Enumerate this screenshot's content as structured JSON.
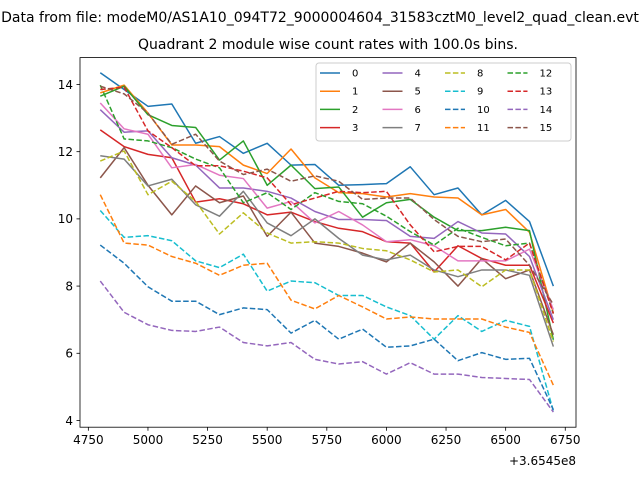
{
  "chart_data": {
    "type": "line",
    "suptitle": "Data from file: modeM0/AS1A10_094T72_9000004604_31583cztM0_level2_quad_clean.evt",
    "title": "Quadrant 2 module wise count rates with 100.0s bins.",
    "xlabel": "",
    "ylabel": "",
    "x_offset_label": "+3.6545e8",
    "xlim": [
      4715,
      6795
    ],
    "ylim": [
      3.8,
      14.8
    ],
    "xticks": [
      4750,
      5000,
      5250,
      5500,
      5750,
      6000,
      6250,
      6500,
      6750
    ],
    "yticks": [
      4,
      6,
      8,
      10,
      12,
      14
    ],
    "legend_position": "top-right",
    "legend_columns": 4,
    "x": [
      4800,
      4900,
      5000,
      5100,
      5200,
      5300,
      5400,
      5500,
      5600,
      5700,
      5800,
      5900,
      6000,
      6100,
      6200,
      6300,
      6400,
      6500,
      6600,
      6700
    ],
    "series": [
      {
        "name": "0",
        "color": "#1f77b4",
        "dash": "solid",
        "values": [
          14.35,
          13.85,
          13.35,
          13.42,
          12.25,
          12.45,
          11.95,
          12.25,
          11.6,
          11.62,
          11.0,
          11.02,
          11.05,
          11.55,
          10.72,
          10.92,
          10.12,
          10.55,
          9.92,
          8.0
        ]
      },
      {
        "name": "1",
        "color": "#ff7f0e",
        "dash": "solid",
        "values": [
          13.75,
          13.98,
          13.15,
          12.2,
          12.2,
          12.15,
          11.6,
          11.35,
          12.08,
          11.22,
          10.78,
          10.75,
          10.65,
          10.75,
          10.65,
          10.62,
          10.12,
          10.28,
          9.6,
          7.2
        ]
      },
      {
        "name": "2",
        "color": "#2ca02c",
        "dash": "solid",
        "values": [
          13.65,
          13.95,
          13.1,
          12.78,
          12.72,
          11.75,
          12.32,
          11.0,
          11.6,
          10.9,
          10.95,
          10.05,
          10.48,
          10.58,
          10.05,
          9.65,
          9.65,
          9.75,
          9.65,
          6.4
        ]
      },
      {
        "name": "3",
        "color": "#d62728",
        "dash": "solid",
        "values": [
          12.65,
          12.15,
          11.92,
          11.82,
          10.5,
          10.6,
          10.45,
          10.12,
          10.2,
          9.92,
          9.72,
          9.62,
          9.32,
          9.28,
          8.42,
          9.2,
          8.82,
          8.62,
          8.62,
          6.9
        ]
      },
      {
        "name": "4",
        "color": "#9467bd",
        "dash": "solid",
        "values": [
          13.25,
          12.58,
          12.62,
          11.82,
          11.6,
          10.92,
          10.92,
          10.82,
          10.62,
          10.22,
          9.98,
          9.98,
          9.95,
          9.48,
          9.42,
          9.92,
          9.58,
          9.55,
          8.88,
          7.0
        ]
      },
      {
        "name": "5",
        "color": "#8c564b",
        "dash": "solid",
        "values": [
          11.22,
          12.12,
          11.0,
          10.12,
          10.98,
          10.48,
          10.68,
          9.48,
          10.2,
          9.28,
          9.18,
          8.98,
          8.72,
          9.28,
          8.72,
          8.0,
          8.82,
          8.22,
          8.48,
          6.55
        ]
      },
      {
        "name": "6",
        "color": "#e377c2",
        "dash": "solid",
        "values": [
          13.45,
          12.68,
          12.52,
          11.52,
          11.62,
          11.3,
          11.2,
          10.32,
          10.52,
          9.88,
          10.22,
          9.82,
          9.32,
          9.38,
          9.2,
          8.75,
          8.75,
          8.75,
          9.1,
          7.3
        ]
      },
      {
        "name": "7",
        "color": "#7f7f7f",
        "dash": "solid",
        "values": [
          11.88,
          11.78,
          10.98,
          11.18,
          10.42,
          10.08,
          10.82,
          9.88,
          9.5,
          10.0,
          9.42,
          8.92,
          8.78,
          8.92,
          8.48,
          8.28,
          8.48,
          8.48,
          8.32,
          6.2
        ]
      },
      {
        "name": "8",
        "color": "#bcbd22",
        "dash": "dashed",
        "values": [
          11.72,
          12.02,
          10.72,
          11.12,
          10.52,
          9.55,
          10.18,
          9.58,
          9.28,
          9.32,
          9.28,
          9.12,
          9.05,
          8.78,
          8.42,
          8.48,
          7.98,
          8.48,
          8.48,
          6.35
        ]
      },
      {
        "name": "9",
        "color": "#17becf",
        "dash": "dashed",
        "values": [
          10.25,
          9.45,
          9.5,
          9.35,
          8.75,
          8.55,
          8.95,
          7.85,
          8.15,
          8.1,
          7.72,
          7.72,
          7.38,
          7.12,
          6.42,
          7.12,
          6.65,
          6.98,
          6.8,
          4.28
        ]
      },
      {
        "name": "10",
        "color": "#1f77b4",
        "dash": "dashed",
        "values": [
          9.22,
          8.68,
          7.98,
          7.55,
          7.55,
          7.15,
          7.35,
          7.3,
          6.6,
          6.98,
          6.42,
          6.72,
          6.18,
          6.22,
          6.42,
          5.78,
          6.02,
          5.82,
          5.85,
          4.32
        ]
      },
      {
        "name": "11",
        "color": "#ff7f0e",
        "dash": "dashed",
        "values": [
          10.72,
          9.28,
          9.22,
          8.88,
          8.68,
          8.32,
          8.62,
          8.68,
          7.58,
          7.32,
          7.72,
          7.38,
          7.02,
          7.08,
          7.02,
          7.02,
          7.02,
          6.78,
          6.62,
          5.05
        ]
      },
      {
        "name": "12",
        "color": "#2ca02c",
        "dash": "dashed",
        "values": [
          13.98,
          12.38,
          12.32,
          12.12,
          11.78,
          11.52,
          10.48,
          10.78,
          10.28,
          10.78,
          10.52,
          10.45,
          10.08,
          9.62,
          9.22,
          9.72,
          9.45,
          9.2,
          9.28,
          7.18
        ]
      },
      {
        "name": "13",
        "color": "#d62728",
        "dash": "dashed",
        "values": [
          13.85,
          13.92,
          12.62,
          12.12,
          11.58,
          11.58,
          11.42,
          11.22,
          10.42,
          10.62,
          10.82,
          10.78,
          10.82,
          9.82,
          9.02,
          9.18,
          9.18,
          8.78,
          9.28,
          7.18
        ]
      },
      {
        "name": "14",
        "color": "#9467bd",
        "dash": "dashed",
        "values": [
          8.15,
          7.22,
          6.85,
          6.68,
          6.65,
          6.78,
          6.32,
          6.22,
          6.32,
          5.82,
          5.68,
          5.75,
          5.38,
          5.72,
          5.38,
          5.38,
          5.28,
          5.25,
          5.22,
          4.25
        ]
      },
      {
        "name": "15",
        "color": "#8c564b",
        "dash": "dashed",
        "values": [
          13.95,
          13.72,
          13.15,
          12.22,
          12.52,
          11.72,
          11.32,
          11.48,
          11.12,
          11.28,
          11.12,
          10.58,
          10.62,
          10.62,
          9.98,
          9.48,
          9.32,
          9.4,
          8.62,
          7.45
        ]
      }
    ]
  }
}
